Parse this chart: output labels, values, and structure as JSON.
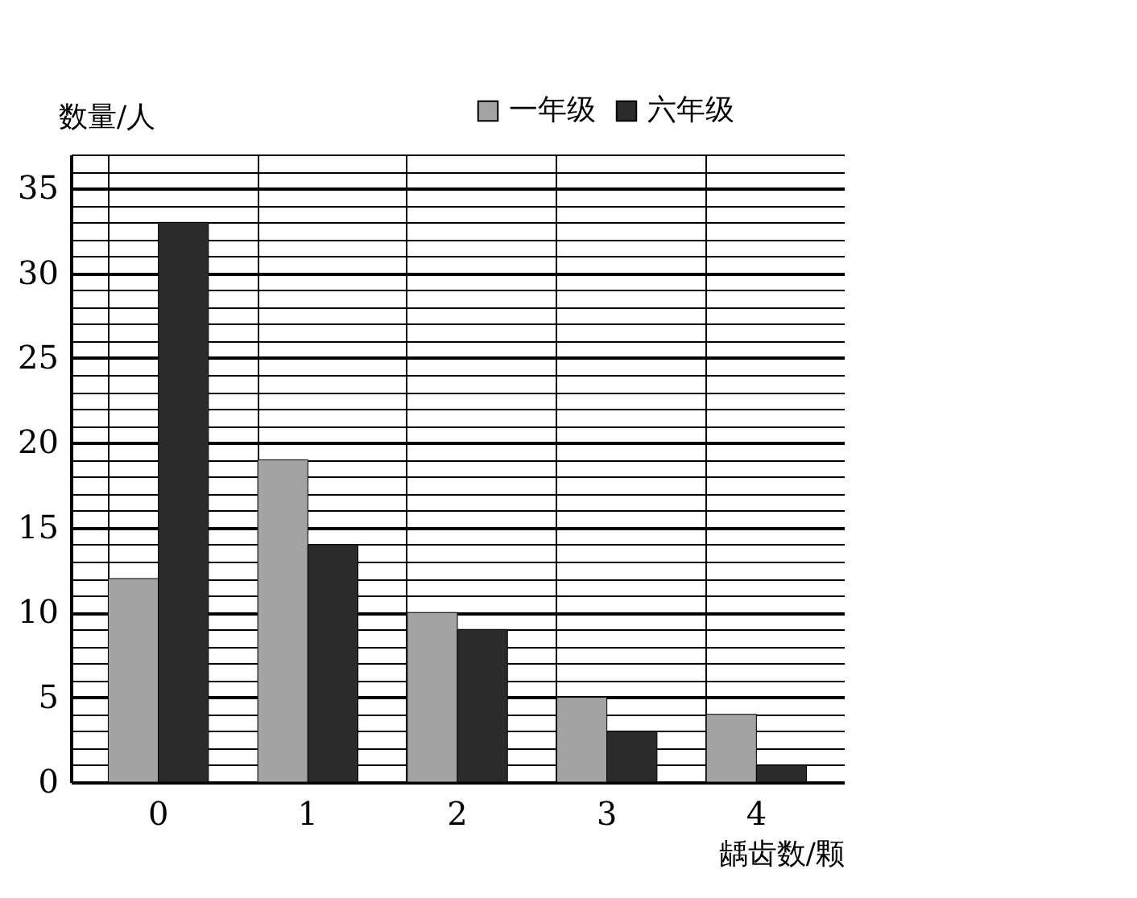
{
  "chart_data": {
    "type": "bar",
    "xlabel": "龋齿数/颗",
    "ylabel": "数量/人",
    "categories": [
      "0",
      "1",
      "2",
      "3",
      "4"
    ],
    "series": [
      {
        "name": "一年级",
        "color": "#a3a3a3",
        "values": [
          12,
          19,
          10,
          5,
          4
        ]
      },
      {
        "name": "六年级",
        "color": "#2b2b2b",
        "values": [
          33,
          14,
          9,
          3,
          1
        ]
      }
    ],
    "ylim": [
      0,
      37
    ],
    "yticks": [
      0,
      {
        "value": 1,
        "label": null
      },
      {
        "value": 2,
        "label": null
      },
      {
        "value": 3,
        "label": null
      },
      {
        "value": 4,
        "label": null
      },
      5,
      {
        "value": 6,
        "label": null
      },
      {
        "value": 7,
        "label": null
      },
      {
        "value": 8,
        "label": null
      },
      {
        "value": 9,
        "label": null
      },
      10,
      {
        "value": 11,
        "label": null
      },
      {
        "value": 12,
        "label": null
      },
      {
        "value": 13,
        "label": null
      },
      {
        "value": 14,
        "label": null
      },
      15,
      {
        "value": 16,
        "label": null
      },
      {
        "value": 17,
        "label": null
      },
      {
        "value": 18,
        "label": null
      },
      {
        "value": 19,
        "label": null
      },
      20,
      {
        "value": 21,
        "label": null
      },
      {
        "value": 22,
        "label": null
      },
      {
        "value": 23,
        "label": null
      },
      {
        "value": 24,
        "label": null
      },
      25,
      {
        "value": 26,
        "label": null
      },
      {
        "value": 27,
        "label": null
      },
      {
        "value": 28,
        "label": null
      },
      {
        "value": 29,
        "label": null
      },
      30,
      {
        "value": 31,
        "label": null
      },
      {
        "value": 32,
        "label": null
      },
      {
        "value": 33,
        "label": null
      },
      {
        "value": 34,
        "label": null
      },
      35,
      {
        "value": 36,
        "label": null
      },
      {
        "value": 37,
        "label": null
      }
    ],
    "grid": true,
    "legend": "top right"
  }
}
